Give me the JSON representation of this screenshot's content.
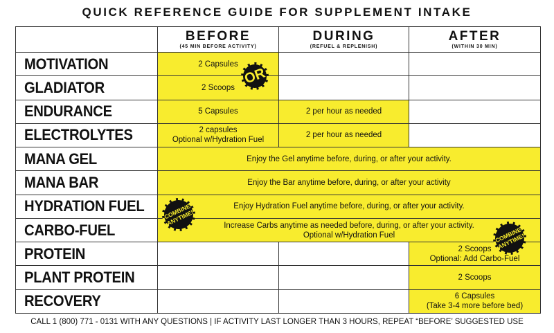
{
  "header": {
    "title": "QUICK REFERENCE GUIDE FOR SUPPLEMENT INTAKE"
  },
  "table": {
    "columns": [
      {
        "title": "BEFORE",
        "subtitle": "(45 MIN BEFORE ACTIVITY)"
      },
      {
        "title": "DURING",
        "subtitle": "(REFUEL & REPLENISH)"
      },
      {
        "title": "AFTER",
        "subtitle": "(WITHIN 30 MIN)"
      }
    ],
    "rows": [
      {
        "label": "MOTIVATION",
        "before": [
          "2 Capsules"
        ]
      },
      {
        "label": "GLADIATOR",
        "before": [
          "2 Scoops"
        ]
      },
      {
        "label": "ENDURANCE",
        "before": [
          "5 Capsules"
        ],
        "during": [
          "2 per hour as needed"
        ]
      },
      {
        "label": "ELECTROLYTES",
        "before": [
          "2 capsules",
          "Optional w/Hydration Fuel"
        ],
        "during": [
          "2 per hour as needed"
        ]
      },
      {
        "label": "MANA GEL",
        "anytime": [
          "Enjoy the Gel anytime before, during, or after your activity."
        ]
      },
      {
        "label": "MANA BAR",
        "anytime": [
          "Enjoy the Bar anytime before, during, or after your activity"
        ]
      },
      {
        "label": "HYDRATION FUEL",
        "anytime": [
          "Enjoy Hydration Fuel anytime before, during, or after your activity."
        ]
      },
      {
        "label": "CARBO-FUEL",
        "anytime": [
          "Increase Carbs anytime as needed before, during, or after your activity.",
          "Optional w/Hydration Fuel"
        ]
      },
      {
        "label": "PROTEIN",
        "after": [
          "2 Scoops",
          "Optional: Add Carbo-Fuel"
        ]
      },
      {
        "label": "PLANT PROTEIN",
        "after": [
          "2 Scoops"
        ]
      },
      {
        "label": "RECOVERY",
        "after": [
          "6 Capsules",
          "(Take 3-4 more before bed)"
        ]
      }
    ]
  },
  "badges": [
    {
      "lines": [
        "OR"
      ]
    },
    {
      "lines": [
        "COMBINE",
        "ANYTIME!"
      ]
    },
    {
      "lines": [
        "COMBINE",
        "ANYTIME!"
      ]
    }
  ],
  "footer": {
    "text": "CALL 1 (800) 771 - 0131 WITH ANY QUESTIONS | IF ACTIVITY LAST LONGER THAN 3 HOURS, REPEAT “BEFORE’ SUGGESTED USE"
  }
}
